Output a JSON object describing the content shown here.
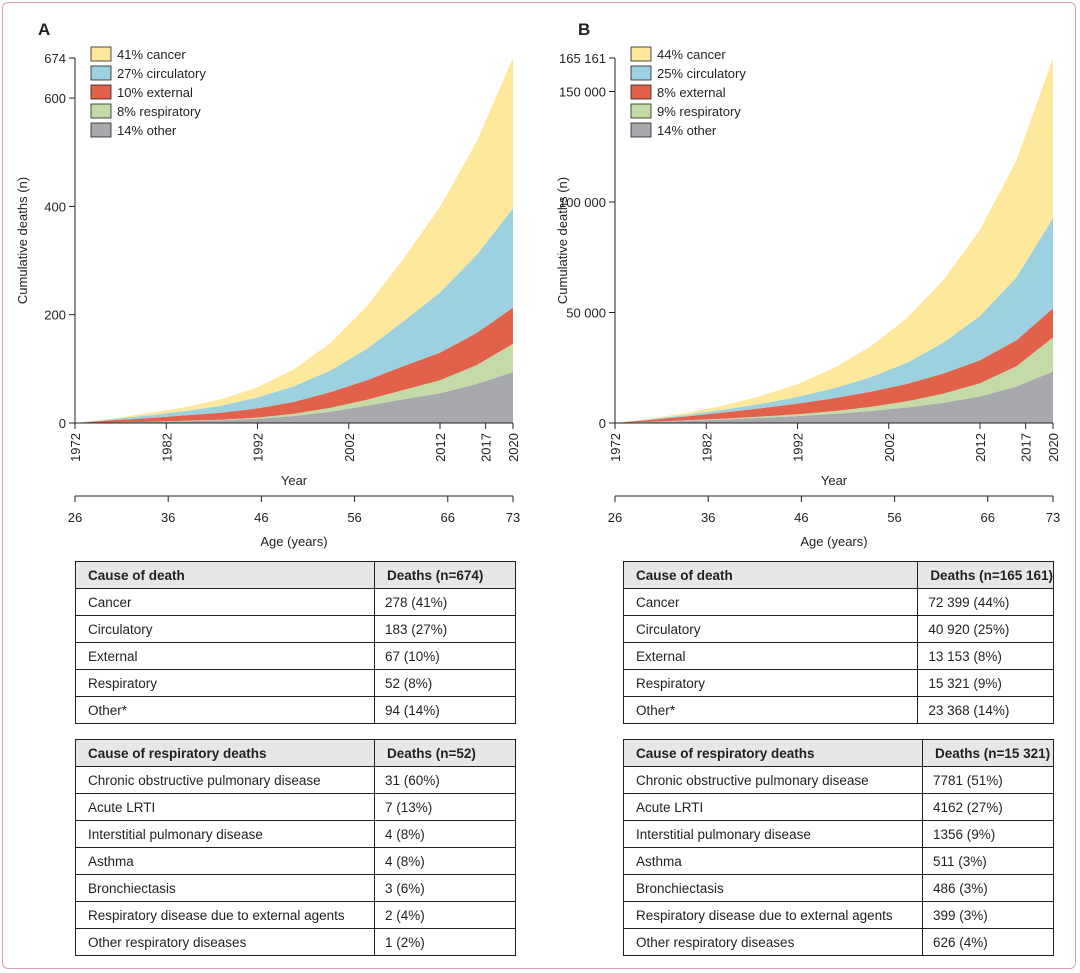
{
  "chart_data": [
    {
      "panel": "A",
      "type": "area",
      "stacked": true,
      "xlabel": "Year",
      "x2label": "Age (years)",
      "ylabel": "Cumulative deaths (n)",
      "x_ticks": [
        1972,
        1982,
        1992,
        2002,
        2012,
        2017,
        2020
      ],
      "age_ticks": [
        26,
        36,
        46,
        56,
        66,
        73
      ],
      "y_ticks": [
        0,
        200,
        400,
        600,
        674
      ],
      "ylim": [
        0,
        674
      ],
      "xlim": [
        1972,
        2020
      ],
      "legend_position": "top-left",
      "x": [
        1972,
        1976,
        1980,
        1984,
        1988,
        1992,
        1996,
        2000,
        2004,
        2008,
        2012,
        2016,
        2020
      ],
      "series": [
        {
          "name": "14% other",
          "color": "#a7a9ac",
          "values": [
            0,
            1,
            2,
            3,
            5,
            8,
            13,
            21,
            32,
            44,
            55,
            72,
            94
          ]
        },
        {
          "name": "8% respiratory",
          "color": "#c4dba8",
          "values": [
            0,
            0,
            0,
            1,
            1,
            2,
            4,
            7,
            11,
            17,
            24,
            35,
            52
          ]
        },
        {
          "name": "10% external",
          "color": "#e2614a",
          "values": [
            0,
            4,
            7,
            10,
            13,
            17,
            22,
            29,
            36,
            44,
            51,
            59,
            67
          ]
        },
        {
          "name": "27% circulatory",
          "color": "#9dd1e0",
          "values": [
            0,
            2,
            5,
            8,
            13,
            20,
            29,
            40,
            58,
            83,
            111,
            144,
            183
          ]
        },
        {
          "name": "41% cancer",
          "color": "#fde89c",
          "values": [
            0,
            1,
            4,
            7,
            12,
            19,
            31,
            51,
            79,
            115,
            158,
            209,
            278
          ]
        }
      ]
    },
    {
      "panel": "B",
      "type": "area",
      "stacked": true,
      "xlabel": "Year",
      "x2label": "Age (years)",
      "ylabel": "Cumulative deaths (n)",
      "x_ticks": [
        1972,
        1982,
        1992,
        2002,
        2012,
        2017,
        2020
      ],
      "age_ticks": [
        26,
        36,
        46,
        56,
        66,
        73
      ],
      "y_ticks": [
        0,
        50000,
        100000,
        150000,
        165161
      ],
      "y_tick_labels": [
        "0",
        "50 000",
        "100 000",
        "150 000",
        "165 161"
      ],
      "ylim": [
        0,
        165161
      ],
      "xlim": [
        1972,
        2020
      ],
      "legend_position": "top-left",
      "x": [
        1972,
        1976,
        1980,
        1984,
        1988,
        1992,
        1996,
        2000,
        2004,
        2008,
        2012,
        2016,
        2020
      ],
      "series": [
        {
          "name": "14% other",
          "color": "#a7a9ac",
          "values": [
            0,
            500,
            1000,
            1600,
            2300,
            3100,
            4100,
            5400,
            7000,
            9200,
            12000,
            16500,
            23368
          ]
        },
        {
          "name": "9% respiratory",
          "color": "#c4dba8",
          "values": [
            0,
            100,
            250,
            400,
            600,
            900,
            1300,
            1900,
            2800,
            4100,
            6000,
            9200,
            15321
          ]
        },
        {
          "name": "8% external",
          "color": "#e2614a",
          "values": [
            0,
            900,
            1800,
            2800,
            3800,
            4800,
            5800,
            6800,
            7900,
            9100,
            10400,
            11700,
            13153
          ]
        },
        {
          "name": "25% circulatory",
          "color": "#9dd1e0",
          "values": [
            0,
            300,
            700,
            1300,
            2000,
            3000,
            4500,
            6600,
            9600,
            14000,
            20000,
            28500,
            40920
          ]
        },
        {
          "name": "44% cancer",
          "color": "#fde89c",
          "values": [
            0,
            300,
            900,
            1900,
            3500,
            5800,
            9200,
            13900,
            20200,
            28400,
            39000,
            53000,
            72399
          ]
        }
      ]
    }
  ],
  "panels": {
    "A": {
      "label": "A",
      "causes_table": {
        "header": [
          "Cause of death",
          "Deaths (n=674)"
        ],
        "rows": [
          [
            "Cancer",
            "278 (41%)"
          ],
          [
            "Circulatory",
            "183 (27%)"
          ],
          [
            "External",
            "67 (10%)"
          ],
          [
            "Respiratory",
            "52 (8%)"
          ],
          [
            "Other*",
            "94 (14%)"
          ]
        ]
      },
      "resp_table": {
        "header": [
          "Cause of respiratory deaths",
          "Deaths (n=52)"
        ],
        "rows": [
          [
            "Chronic obstructive pulmonary disease",
            "31 (60%)"
          ],
          [
            "Acute LRTI",
            "7 (13%)"
          ],
          [
            "Interstitial pulmonary disease",
            "4 (8%)"
          ],
          [
            "Asthma",
            "4 (8%)"
          ],
          [
            "Bronchiectasis",
            "3 (6%)"
          ],
          [
            "Respiratory disease due to external agents",
            "2 (4%)"
          ],
          [
            "Other respiratory diseases",
            "1 (2%)"
          ]
        ]
      }
    },
    "B": {
      "label": "B",
      "causes_table": {
        "header": [
          "Cause of death",
          "Deaths (n=165 161)"
        ],
        "rows": [
          [
            "Cancer",
            "72 399 (44%)"
          ],
          [
            "Circulatory",
            "40 920 (25%)"
          ],
          [
            "External",
            "13 153 (8%)"
          ],
          [
            "Respiratory",
            "15 321 (9%)"
          ],
          [
            "Other*",
            "23 368 (14%)"
          ]
        ]
      },
      "resp_table": {
        "header": [
          "Cause of respiratory deaths",
          "Deaths (n=15 321)"
        ],
        "rows": [
          [
            "Chronic obstructive pulmonary disease",
            "7781 (51%)"
          ],
          [
            "Acute LRTI",
            "4162 (27%)"
          ],
          [
            "Interstitial pulmonary disease",
            "1356 (9%)"
          ],
          [
            "Asthma",
            "511 (3%)"
          ],
          [
            "Bronchiectasis",
            "486 (3%)"
          ],
          [
            "Respiratory disease due to external agents",
            "399 (3%)"
          ],
          [
            "Other respiratory diseases",
            "626 (4%)"
          ]
        ]
      }
    }
  }
}
